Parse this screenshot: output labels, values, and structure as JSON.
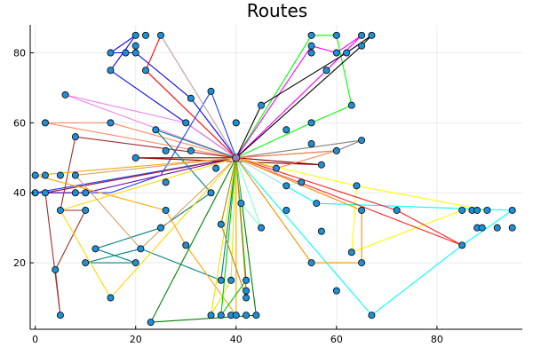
{
  "chart_data": {
    "type": "scatter",
    "title": "Routes",
    "xlabel": "",
    "ylabel": "",
    "xlim": [
      -1,
      97
    ],
    "ylim": [
      1,
      88
    ],
    "x_ticks": [
      0,
      20,
      40,
      60,
      80
    ],
    "y_ticks": [
      20,
      40,
      60,
      80
    ],
    "x_tick_labels": [
      "0",
      "20",
      "40",
      "60",
      "80"
    ],
    "y_tick_labels": [
      "20",
      "40",
      "60",
      "80"
    ],
    "grid": true,
    "legend": "none",
    "depot": {
      "x": 40,
      "y": 50
    },
    "customers": [
      {
        "x": 20,
        "y": 85
      },
      {
        "x": 22,
        "y": 85
      },
      {
        "x": 25,
        "y": 85
      },
      {
        "x": 15,
        "y": 80
      },
      {
        "x": 18,
        "y": 80
      },
      {
        "x": 20,
        "y": 80
      },
      {
        "x": 20,
        "y": 82
      },
      {
        "x": 15,
        "y": 75
      },
      {
        "x": 22,
        "y": 75
      },
      {
        "x": 6,
        "y": 68
      },
      {
        "x": 35,
        "y": 69
      },
      {
        "x": 31,
        "y": 67
      },
      {
        "x": 2,
        "y": 60
      },
      {
        "x": 15,
        "y": 60
      },
      {
        "x": 30,
        "y": 60
      },
      {
        "x": 40,
        "y": 60
      },
      {
        "x": 8,
        "y": 56
      },
      {
        "x": 24,
        "y": 58
      },
      {
        "x": 26,
        "y": 52
      },
      {
        "x": 31,
        "y": 52
      },
      {
        "x": 20,
        "y": 50
      },
      {
        "x": 0,
        "y": 45
      },
      {
        "x": 2,
        "y": 45
      },
      {
        "x": 5,
        "y": 45
      },
      {
        "x": 8,
        "y": 45
      },
      {
        "x": 36,
        "y": 47
      },
      {
        "x": 0,
        "y": 40
      },
      {
        "x": 2,
        "y": 40
      },
      {
        "x": 8,
        "y": 40
      },
      {
        "x": 10,
        "y": 40
      },
      {
        "x": 35,
        "y": 40
      },
      {
        "x": 10,
        "y": 35
      },
      {
        "x": 5,
        "y": 35
      },
      {
        "x": 26,
        "y": 43
      },
      {
        "x": 26,
        "y": 35
      },
      {
        "x": 25,
        "y": 30
      },
      {
        "x": 21,
        "y": 24
      },
      {
        "x": 30,
        "y": 25
      },
      {
        "x": 12,
        "y": 24
      },
      {
        "x": 10,
        "y": 20
      },
      {
        "x": 20,
        "y": 20
      },
      {
        "x": 4,
        "y": 18
      },
      {
        "x": 15,
        "y": 10
      },
      {
        "x": 5,
        "y": 5
      },
      {
        "x": 23,
        "y": 3
      },
      {
        "x": 37,
        "y": 31
      },
      {
        "x": 41,
        "y": 37
      },
      {
        "x": 45,
        "y": 30
      },
      {
        "x": 37,
        "y": 15
      },
      {
        "x": 39,
        "y": 15
      },
      {
        "x": 42,
        "y": 15
      },
      {
        "x": 42,
        "y": 12
      },
      {
        "x": 42,
        "y": 10
      },
      {
        "x": 35,
        "y": 5
      },
      {
        "x": 37,
        "y": 5
      },
      {
        "x": 39,
        "y": 5
      },
      {
        "x": 40,
        "y": 5
      },
      {
        "x": 42,
        "y": 5
      },
      {
        "x": 44,
        "y": 5
      },
      {
        "x": 55,
        "y": 85
      },
      {
        "x": 60,
        "y": 85
      },
      {
        "x": 65,
        "y": 85
      },
      {
        "x": 67,
        "y": 85
      },
      {
        "x": 55,
        "y": 82
      },
      {
        "x": 55,
        "y": 80
      },
      {
        "x": 60,
        "y": 80
      },
      {
        "x": 62,
        "y": 80
      },
      {
        "x": 65,
        "y": 82
      },
      {
        "x": 58,
        "y": 75
      },
      {
        "x": 63,
        "y": 65
      },
      {
        "x": 45,
        "y": 65
      },
      {
        "x": 55,
        "y": 60
      },
      {
        "x": 50,
        "y": 58
      },
      {
        "x": 55,
        "y": 54
      },
      {
        "x": 65,
        "y": 55
      },
      {
        "x": 60,
        "y": 52
      },
      {
        "x": 57,
        "y": 48
      },
      {
        "x": 48,
        "y": 47
      },
      {
        "x": 53,
        "y": 43
      },
      {
        "x": 50,
        "y": 42
      },
      {
        "x": 64,
        "y": 42
      },
      {
        "x": 56,
        "y": 37
      },
      {
        "x": 50,
        "y": 35
      },
      {
        "x": 65,
        "y": 35
      },
      {
        "x": 72,
        "y": 35
      },
      {
        "x": 57,
        "y": 29
      },
      {
        "x": 63,
        "y": 23
      },
      {
        "x": 65,
        "y": 20
      },
      {
        "x": 55,
        "y": 20
      },
      {
        "x": 60,
        "y": 12
      },
      {
        "x": 67,
        "y": 5
      },
      {
        "x": 85,
        "y": 35
      },
      {
        "x": 87,
        "y": 35
      },
      {
        "x": 88,
        "y": 35
      },
      {
        "x": 90,
        "y": 35
      },
      {
        "x": 95,
        "y": 35
      },
      {
        "x": 88,
        "y": 30
      },
      {
        "x": 89,
        "y": 30
      },
      {
        "x": 92,
        "y": 30
      },
      {
        "x": 95,
        "y": 30
      },
      {
        "x": 85,
        "y": 25
      }
    ],
    "routes": [
      {
        "color": "#0000ff",
        "points": [
          [
            40,
            50
          ],
          [
            31,
            67
          ],
          [
            20,
            80
          ],
          [
            15,
            80
          ],
          [
            20,
            85
          ],
          [
            15,
            75
          ],
          [
            40,
            50
          ]
        ]
      },
      {
        "color": "#ff0000",
        "points": [
          [
            40,
            50
          ],
          [
            25,
            85
          ],
          [
            22,
            75
          ],
          [
            40,
            50
          ]
        ]
      },
      {
        "color": "#00ff00",
        "points": [
          [
            40,
            50
          ],
          [
            55,
            85
          ],
          [
            60,
            85
          ],
          [
            63,
            65
          ],
          [
            55,
            60
          ],
          [
            40,
            50
          ]
        ]
      },
      {
        "color": "#ff00ff",
        "points": [
          [
            40,
            50
          ],
          [
            58,
            75
          ],
          [
            65,
            85
          ],
          [
            60,
            80
          ],
          [
            55,
            82
          ],
          [
            40,
            50
          ]
        ]
      },
      {
        "color": "#000000",
        "points": [
          [
            40,
            50
          ],
          [
            45,
            65
          ],
          [
            62,
            80
          ],
          [
            67,
            85
          ],
          [
            65,
            82
          ],
          [
            40,
            50
          ]
        ]
      },
      {
        "color": "#ff8c69",
        "points": [
          [
            40,
            50
          ],
          [
            2,
            60
          ],
          [
            15,
            60
          ],
          [
            40,
            50
          ]
        ]
      },
      {
        "color": "#ee82ee",
        "points": [
          [
            40,
            50
          ],
          [
            6,
            68
          ],
          [
            30,
            60
          ],
          [
            40,
            50
          ]
        ]
      },
      {
        "color": "#1e3cff",
        "points": [
          [
            40,
            50
          ],
          [
            35,
            69
          ],
          [
            25,
            45
          ],
          [
            15,
            40
          ],
          [
            0,
            40
          ],
          [
            40,
            50
          ]
        ]
      },
      {
        "color": "#6a0dad",
        "points": [
          [
            40,
            50
          ],
          [
            10,
            40
          ],
          [
            2,
            40
          ],
          [
            40,
            50
          ]
        ]
      },
      {
        "color": "#a52a2a",
        "points": [
          [
            40,
            50
          ],
          [
            8,
            56
          ],
          [
            5,
            35
          ],
          [
            10,
            35
          ],
          [
            4,
            18
          ],
          [
            5,
            5
          ],
          [
            2,
            40
          ],
          [
            40,
            50
          ]
        ]
      },
      {
        "color": "#8b0000",
        "points": [
          [
            40,
            50
          ],
          [
            20,
            50
          ],
          [
            57,
            48
          ],
          [
            40,
            50
          ]
        ]
      },
      {
        "color": "#008080",
        "points": [
          [
            40,
            50
          ],
          [
            24,
            58
          ],
          [
            35,
            40
          ],
          [
            25,
            30
          ],
          [
            12,
            24
          ],
          [
            20,
            20
          ],
          [
            10,
            20
          ],
          [
            21,
            24
          ],
          [
            37,
            15
          ],
          [
            40,
            50
          ]
        ]
      },
      {
        "color": "#ffa500",
        "points": [
          [
            40,
            50
          ],
          [
            0,
            45
          ],
          [
            26,
            35
          ],
          [
            30,
            25
          ],
          [
            40,
            5
          ],
          [
            40,
            50
          ]
        ]
      },
      {
        "color": "#ffd700",
        "points": [
          [
            40,
            50
          ],
          [
            5,
            35
          ],
          [
            15,
            10
          ],
          [
            40,
            50
          ]
        ]
      },
      {
        "color": "#d3a26b",
        "points": [
          [
            40,
            50
          ],
          [
            8,
            45
          ],
          [
            21,
            24
          ],
          [
            40,
            50
          ]
        ]
      },
      {
        "color": "#ffff00",
        "points": [
          [
            40,
            50
          ],
          [
            64,
            42
          ],
          [
            90,
            35
          ],
          [
            85,
            35
          ],
          [
            63,
            23
          ],
          [
            64,
            42
          ],
          [
            40,
            50
          ]
        ]
      },
      {
        "color": "#00ffff",
        "points": [
          [
            40,
            50
          ],
          [
            56,
            37
          ],
          [
            95,
            35
          ],
          [
            85,
            25
          ],
          [
            67,
            5
          ],
          [
            40,
            50
          ]
        ]
      },
      {
        "color": "#ff2020",
        "points": [
          [
            40,
            50
          ],
          [
            72,
            35
          ],
          [
            85,
            25
          ],
          [
            40,
            50
          ]
        ]
      },
      {
        "color": "#008000",
        "points": [
          [
            40,
            50
          ],
          [
            23,
            3
          ],
          [
            44,
            5
          ],
          [
            40,
            50
          ]
        ]
      },
      {
        "color": "#e6e600",
        "points": [
          [
            40,
            50
          ],
          [
            35,
            5
          ],
          [
            39,
            15
          ],
          [
            40,
            50
          ]
        ]
      },
      {
        "color": "#00cc00",
        "points": [
          [
            40,
            50
          ],
          [
            42,
            15
          ],
          [
            37,
            5
          ],
          [
            40,
            50
          ]
        ]
      },
      {
        "color": "#808080",
        "points": [
          [
            40,
            50
          ],
          [
            65,
            55
          ],
          [
            60,
            52
          ],
          [
            40,
            50
          ]
        ]
      },
      {
        "color": "#ff7f50",
        "points": [
          [
            40,
            50
          ],
          [
            60,
            52
          ],
          [
            48,
            47
          ],
          [
            40,
            50
          ]
        ]
      },
      {
        "color": "#dddddd",
        "points": [
          [
            40,
            50
          ],
          [
            53,
            43
          ],
          [
            50,
            42
          ],
          [
            40,
            50
          ]
        ]
      },
      {
        "color": "#c0c0c0",
        "points": [
          [
            40,
            50
          ],
          [
            25,
            85
          ],
          [
            40,
            50
          ]
        ]
      },
      {
        "color": "#ff8c00",
        "points": [
          [
            40,
            50
          ],
          [
            65,
            35
          ],
          [
            65,
            20
          ],
          [
            55,
            20
          ],
          [
            40,
            50
          ]
        ]
      },
      {
        "color": "#7fffd4",
        "points": [
          [
            40,
            50
          ],
          [
            41,
            37
          ],
          [
            45,
            30
          ],
          [
            40,
            50
          ]
        ]
      },
      {
        "color": "#b8860b",
        "points": [
          [
            40,
            50
          ],
          [
            37,
            31
          ],
          [
            42,
            10
          ],
          [
            42,
            12
          ],
          [
            40,
            50
          ]
        ]
      }
    ]
  }
}
